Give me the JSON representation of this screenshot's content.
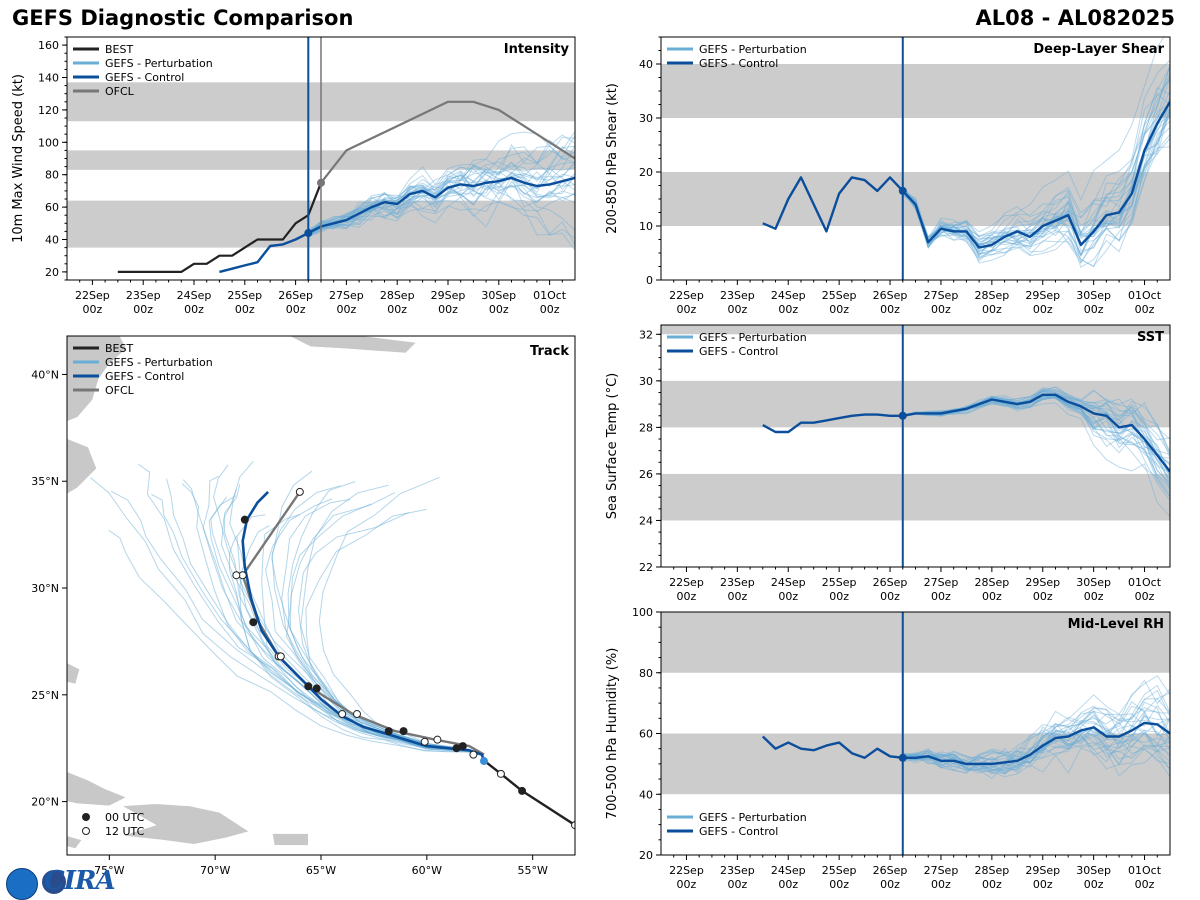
{
  "header": {
    "title": "GEFS Diagnostic Comparison",
    "storm": "AL08 - AL082025"
  },
  "logo": {
    "text": "CIRA"
  },
  "colors": {
    "best": "#222222",
    "control": "#0b4e9b",
    "perturbation": "#6aaed6",
    "ofcl": "#777777",
    "band": "#cccccc",
    "land": "#c8c8c8"
  },
  "time_ticks": [
    "22Sep\n00z",
    "23Sep\n00z",
    "24Sep\n00z",
    "25Sep\n00z",
    "26Sep\n00z",
    "27Sep\n00z",
    "28Sep\n00z",
    "29Sep\n00z",
    "30Sep\n00z",
    "01Oct\n00z"
  ],
  "chart_data": [
    {
      "id": "intensity",
      "type": "line",
      "title": "Intensity",
      "ylabel": "10m Max Wind Speed (kt)",
      "xlim": [
        -0.5,
        9.5
      ],
      "ylim": [
        15,
        165
      ],
      "yticks": [
        20,
        40,
        60,
        80,
        100,
        120,
        140,
        160
      ],
      "bands": [
        [
          35,
          64
        ],
        [
          83,
          95
        ],
        [
          113,
          137
        ]
      ],
      "init_time": 4.25,
      "ofcl_time": 4.5,
      "legend": [
        "BEST",
        "GEFS - Perturbation",
        "GEFS - Control",
        "OFCL"
      ],
      "series": [
        {
          "name": "BEST",
          "x": [
            0.5,
            0.75,
            1.0,
            1.25,
            1.5,
            1.75,
            2.0,
            2.25,
            2.5,
            2.75,
            3.0,
            3.25,
            3.5,
            3.75,
            4.0,
            4.25,
            4.5
          ],
          "y": [
            20,
            20,
            20,
            20,
            20,
            20,
            25,
            25,
            30,
            30,
            35,
            40,
            40,
            40,
            50,
            55,
            75
          ]
        },
        {
          "name": "GEFS - Control",
          "x": [
            2.5,
            2.75,
            3.0,
            3.25,
            3.5,
            3.75,
            4.0,
            4.25,
            4.5,
            4.75,
            5.0,
            5.25,
            5.5,
            5.75,
            6.0,
            6.25,
            6.5,
            6.75,
            7.0,
            7.25,
            7.5,
            7.75,
            8.0,
            8.25,
            8.5,
            8.75,
            9.0,
            9.25,
            9.5
          ],
          "y": [
            20,
            22,
            24,
            26,
            36,
            37,
            40,
            44,
            48,
            50,
            52,
            56,
            60,
            63,
            62,
            68,
            70,
            66,
            72,
            74,
            73,
            75,
            76,
            78,
            75,
            73,
            74,
            76,
            78
          ]
        },
        {
          "name": "OFCL",
          "x": [
            4.5,
            5.0,
            6.0,
            7.0,
            7.5,
            8.0,
            8.5,
            9.0,
            9.5
          ],
          "y": [
            75,
            95,
            110,
            125,
            125,
            120,
            110,
            100,
            90
          ]
        }
      ],
      "ofcl_points_00z": [
        {
          "x": 4.5,
          "y": 75
        }
      ],
      "control_init_point": {
        "x": 4.25,
        "y": 44
      }
    },
    {
      "id": "shear",
      "type": "line",
      "title": "Deep-Layer Shear",
      "ylabel": "200-850 hPa Shear (kt)",
      "xlim": [
        -0.5,
        9.5
      ],
      "ylim": [
        0,
        45
      ],
      "yticks": [
        0,
        10,
        20,
        30,
        40
      ],
      "bands": [
        [
          10,
          20
        ],
        [
          30,
          40
        ]
      ],
      "init_time": 4.25,
      "legend": [
        "GEFS - Perturbation",
        "GEFS - Control"
      ],
      "series": [
        {
          "name": "GEFS - Control",
          "x": [
            1.5,
            1.75,
            2.0,
            2.25,
            2.5,
            2.75,
            3.0,
            3.25,
            3.5,
            3.75,
            4.0,
            4.25,
            4.5,
            4.75,
            5.0,
            5.25,
            5.5,
            5.75,
            6.0,
            6.25,
            6.5,
            6.75,
            7.0,
            7.25,
            7.5,
            7.75,
            8.0,
            8.25,
            8.5,
            8.75,
            9.0,
            9.25,
            9.5
          ],
          "y": [
            10.5,
            9.5,
            15,
            19,
            14,
            9,
            16,
            19,
            18.5,
            16.5,
            19,
            16.5,
            14,
            7,
            9.5,
            9,
            9,
            6,
            6.5,
            8,
            9,
            8,
            10,
            11,
            12,
            6.5,
            9,
            12,
            12.5,
            16,
            24,
            29,
            33
          ]
        }
      ]
    },
    {
      "id": "sst",
      "type": "line",
      "title": "SST",
      "ylabel": "Sea Surface Temp (°C)",
      "xlim": [
        -0.5,
        9.5
      ],
      "ylim": [
        22,
        32.4
      ],
      "yticks": [
        22,
        24,
        26,
        28,
        30,
        32
      ],
      "bands": [
        [
          24,
          26
        ],
        [
          28,
          30
        ],
        [
          32,
          33
        ]
      ],
      "init_time": 4.25,
      "legend": [
        "GEFS - Perturbation",
        "GEFS - Control"
      ],
      "series": [
        {
          "name": "GEFS - Control",
          "x": [
            1.5,
            1.75,
            2.0,
            2.25,
            2.5,
            2.75,
            3.0,
            3.25,
            3.5,
            3.75,
            4.0,
            4.25,
            4.5,
            4.75,
            5.0,
            5.25,
            5.5,
            5.75,
            6.0,
            6.25,
            6.5,
            6.75,
            7.0,
            7.25,
            7.5,
            7.75,
            8.0,
            8.25,
            8.5,
            8.75,
            9.0,
            9.25,
            9.5
          ],
          "y": [
            28.1,
            27.8,
            27.8,
            28.2,
            28.2,
            28.3,
            28.4,
            28.5,
            28.55,
            28.55,
            28.5,
            28.5,
            28.6,
            28.6,
            28.6,
            28.7,
            28.8,
            29.0,
            29.2,
            29.1,
            29.0,
            29.1,
            29.4,
            29.4,
            29.1,
            28.9,
            28.6,
            28.5,
            28.0,
            28.1,
            27.5,
            26.8,
            26.1
          ]
        }
      ]
    },
    {
      "id": "rh",
      "type": "line",
      "title": "Mid-Level RH",
      "ylabel": "700-500 hPa Humidity (%)",
      "xlim": [
        -0.5,
        9.5
      ],
      "ylim": [
        20,
        100
      ],
      "yticks": [
        20,
        40,
        60,
        80,
        100
      ],
      "bands": [
        [
          40,
          60
        ],
        [
          80,
          100
        ]
      ],
      "init_time": 4.25,
      "legend": [
        "GEFS - Perturbation",
        "GEFS - Control"
      ],
      "series": [
        {
          "name": "GEFS - Control",
          "x": [
            1.5,
            1.75,
            2.0,
            2.25,
            2.5,
            2.75,
            3.0,
            3.25,
            3.5,
            3.75,
            4.0,
            4.25,
            4.5,
            4.75,
            5.0,
            5.25,
            5.5,
            5.75,
            6.0,
            6.25,
            6.5,
            6.75,
            7.0,
            7.25,
            7.5,
            7.75,
            8.0,
            8.25,
            8.5,
            8.75,
            9.0,
            9.25,
            9.5
          ],
          "y": [
            59,
            55,
            57,
            55,
            54.5,
            56,
            57,
            53.5,
            52,
            55,
            52.5,
            52,
            52,
            52.5,
            51,
            51,
            50,
            50,
            50,
            50.5,
            51,
            53,
            56,
            58.5,
            59,
            61,
            62,
            59,
            59,
            61,
            63.5,
            63,
            60
          ]
        }
      ]
    },
    {
      "id": "track",
      "type": "scatter",
      "title": "Track",
      "xlim": [
        -77,
        -53
      ],
      "ylim": [
        17.5,
        41.8
      ],
      "xticks": [
        -75,
        -70,
        -65,
        -60,
        -55
      ],
      "xtick_labels": [
        "75°W",
        "70°W",
        "65°W",
        "60°W",
        "55°W"
      ],
      "yticks": [
        20,
        25,
        30,
        35,
        40
      ],
      "ytick_labels": [
        "20°N",
        "25°N",
        "30°N",
        "35°N",
        "40°N"
      ],
      "legend": [
        "BEST",
        "GEFS - Perturbation",
        "GEFS - Control",
        "OFCL"
      ],
      "marker_legend": [
        "00 UTC",
        "12 UTC"
      ],
      "best": {
        "lon": [
          -53.0,
          -55.5,
          -56.5,
          -57.4
        ],
        "lat": [
          18.9,
          20.5,
          21.3,
          22.0
        ]
      },
      "best_00z": [
        {
          "lon": -55.5,
          "lat": 20.5
        }
      ],
      "best_12z": [
        {
          "lon": -53.0,
          "lat": 18.9
        },
        {
          "lon": -56.5,
          "lat": 21.3
        }
      ],
      "control": {
        "lon": [
          -57.3,
          -57.4,
          -58.0,
          -59.0,
          -60.0,
          -61.0,
          -62.0,
          -63.0,
          -64.0,
          -65.0,
          -66.0,
          -67.0,
          -67.8,
          -68.3,
          -68.6,
          -68.7,
          -68.5,
          -68.0,
          -67.5
        ],
        "lat": [
          21.9,
          22.2,
          22.4,
          22.5,
          22.6,
          22.9,
          23.2,
          23.5,
          24.0,
          24.8,
          25.8,
          26.8,
          28.0,
          29.5,
          31.0,
          32.2,
          33.2,
          34.0,
          34.5
        ]
      },
      "control_00z": [
        {
          "lon": -58.6,
          "lat": 22.5
        },
        {
          "lon": -61.1,
          "lat": 23.3
        },
        {
          "lon": -65.2,
          "lat": 25.3
        },
        {
          "lon": -68.2,
          "lat": 28.4
        },
        {
          "lon": -68.6,
          "lat": 33.2
        }
      ],
      "control_init": {
        "lon": -57.3,
        "lat": 21.9
      },
      "ofcl": {
        "lon": [
          -57.3,
          -58.0,
          -59.6,
          -61.5,
          -63.5,
          -65.6,
          -67.0,
          -68.0,
          -68.7,
          -66.0
        ],
        "lat": [
          22.2,
          22.6,
          22.9,
          23.3,
          24.1,
          25.4,
          26.8,
          28.5,
          30.6,
          34.5
        ]
      },
      "ofcl_00z": [
        {
          "lon": -58.3,
          "lat": 22.6
        },
        {
          "lon": -61.8,
          "lat": 23.3
        },
        {
          "lon": -65.6,
          "lat": 25.4
        }
      ],
      "ofcl_12z": [
        {
          "lon": -60.1,
          "lat": 22.8
        },
        {
          "lon": -59.5,
          "lat": 22.9
        },
        {
          "lon": -63.3,
          "lat": 24.1
        },
        {
          "lon": -64.0,
          "lat": 24.1
        },
        {
          "lon": -67.0,
          "lat": 26.8
        },
        {
          "lon": -66.9,
          "lat": 26.8
        },
        {
          "lon": -68.7,
          "lat": 30.6
        },
        {
          "lon": -69.0,
          "lat": 30.6
        },
        {
          "lon": -66.0,
          "lat": 34.5
        },
        {
          "lon": -57.8,
          "lat": 22.2
        }
      ]
    }
  ]
}
